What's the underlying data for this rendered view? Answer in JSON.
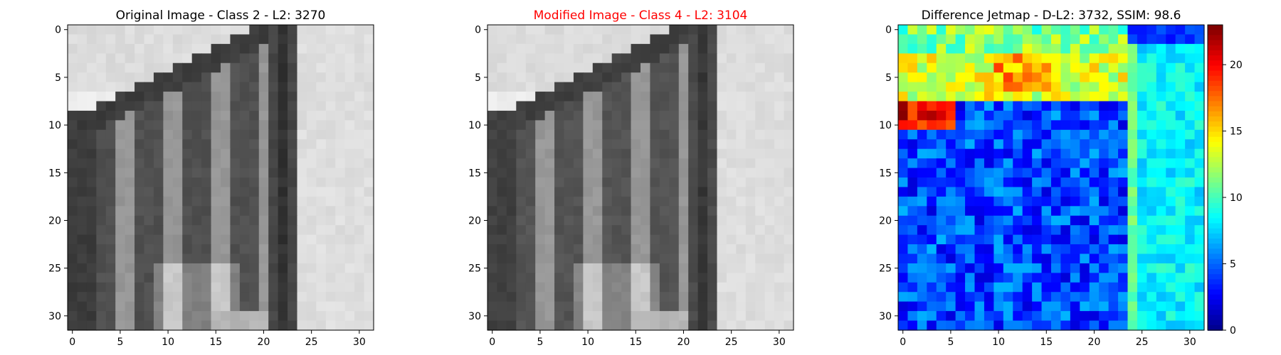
{
  "chart_data": [
    {
      "type": "heatmap",
      "title": "Original Image - Class 2 - L2: 3270",
      "title_color": "#000000",
      "colormap": "gray",
      "xticks": [
        0,
        5,
        10,
        15,
        20,
        25,
        30
      ],
      "yticks": [
        0,
        5,
        10,
        15,
        20,
        25,
        30
      ],
      "grid_size": [
        32,
        32
      ],
      "xlim": [
        -0.5,
        31.5
      ],
      "ylim": [
        31.5,
        -0.5
      ],
      "colorbar": false
    },
    {
      "type": "heatmap",
      "title": "Modified Image - Class 4 - L2: 3104",
      "title_color": "#ff0000",
      "colormap": "gray",
      "xticks": [
        0,
        5,
        10,
        15,
        20,
        25,
        30
      ],
      "yticks": [
        0,
        5,
        10,
        15,
        20,
        25,
        30
      ],
      "grid_size": [
        32,
        32
      ],
      "xlim": [
        -0.5,
        31.5
      ],
      "ylim": [
        31.5,
        -0.5
      ],
      "colorbar": false
    },
    {
      "type": "heatmap",
      "title": "Difference Jetmap - D-L2: 3732, SSIM: 98.6",
      "title_color": "#000000",
      "colormap": "jet",
      "xticks": [
        0,
        5,
        10,
        15,
        20,
        25,
        30
      ],
      "yticks": [
        0,
        5,
        10,
        15,
        20,
        25,
        30
      ],
      "grid_size": [
        32,
        32
      ],
      "xlim": [
        -0.5,
        31.5
      ],
      "ylim": [
        31.5,
        -0.5
      ],
      "colorbar": true,
      "colorbar_ticks": [
        0,
        5,
        10,
        15,
        20
      ],
      "colorbar_range": [
        0,
        23
      ]
    }
  ]
}
